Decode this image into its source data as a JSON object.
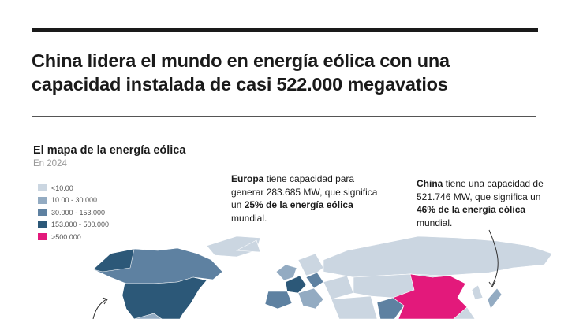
{
  "header": {
    "title": "China lidera el mundo en energía eólica con una capacidad instalada de casi 522.000 megavatios"
  },
  "map": {
    "title": "El mapa de la energía eólica",
    "subtitle": "En 2024",
    "legend": [
      {
        "label": "<10.00",
        "color": "#cbd6e1"
      },
      {
        "label": "10.00 - 30.000",
        "color": "#93abc2"
      },
      {
        "label": "30.000 - 153.000",
        "color": "#5e81a1"
      },
      {
        "label": "153.000 - 500.000",
        "color": "#2c5878"
      },
      {
        "label": ">500.000",
        "color": "#e3197b"
      }
    ],
    "annotations": [
      {
        "runs": [
          {
            "text": "Europa",
            "bold": true
          },
          {
            "text": " tiene capacidad para generar 283.685 MW, que significa un ",
            "bold": false
          },
          {
            "text": "25% de la energía eólica",
            "bold": true
          },
          {
            "text": " mundial.",
            "bold": false
          }
        ]
      },
      {
        "runs": [
          {
            "text": "China",
            "bold": true
          },
          {
            "text": " tiene una capacidad de 521.746 MW, que significa un ",
            "bold": false
          },
          {
            "text": "46% de la energía eólica",
            "bold": true
          },
          {
            "text": " mundial.",
            "bold": false
          }
        ]
      }
    ]
  }
}
